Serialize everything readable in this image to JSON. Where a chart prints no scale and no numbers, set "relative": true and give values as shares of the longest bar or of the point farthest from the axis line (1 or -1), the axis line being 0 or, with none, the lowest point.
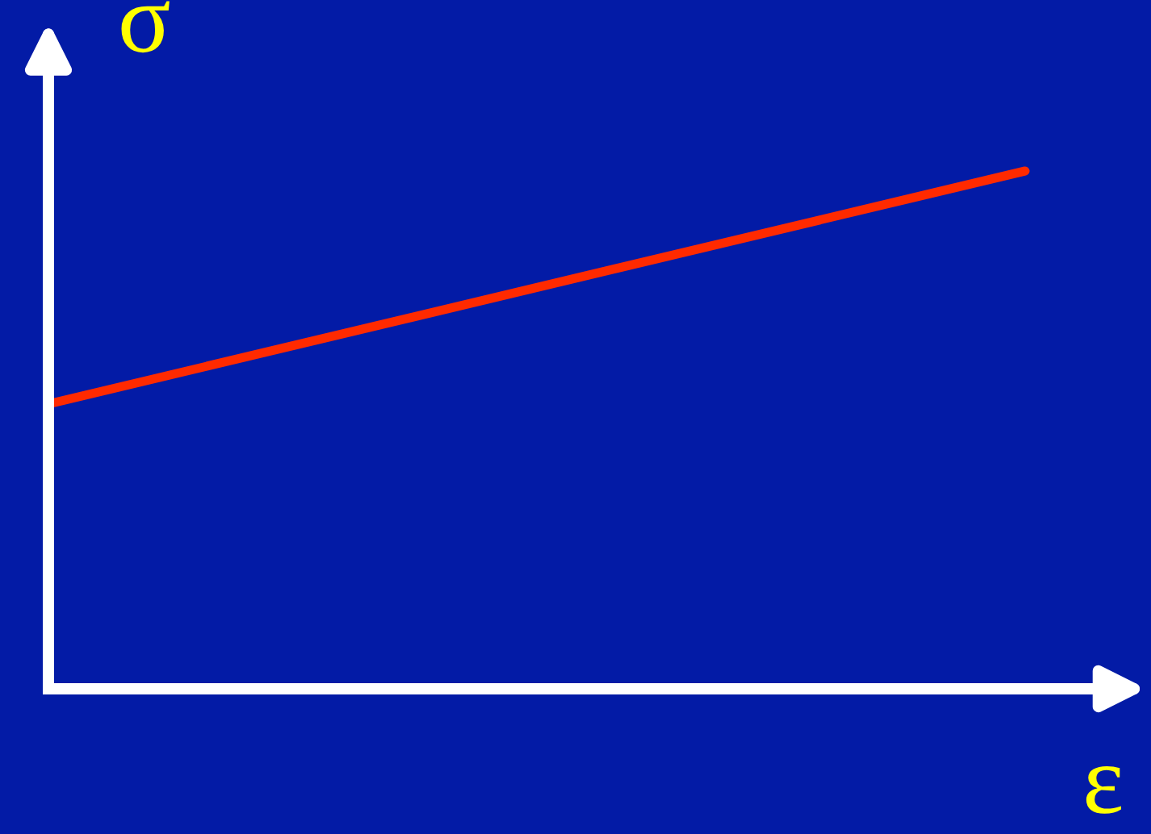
{
  "chart_data": {
    "type": "line",
    "relative": true,
    "xlabel": "ε",
    "ylabel": "σ",
    "categories": [
      null,
      null
    ],
    "series": [
      {
        "color": "#ff2a00",
        "values": [
          0.55,
          1
        ]
      }
    ],
    "marker": "none",
    "line_style": "solid",
    "legend": false,
    "tick_labels": false
  }
}
